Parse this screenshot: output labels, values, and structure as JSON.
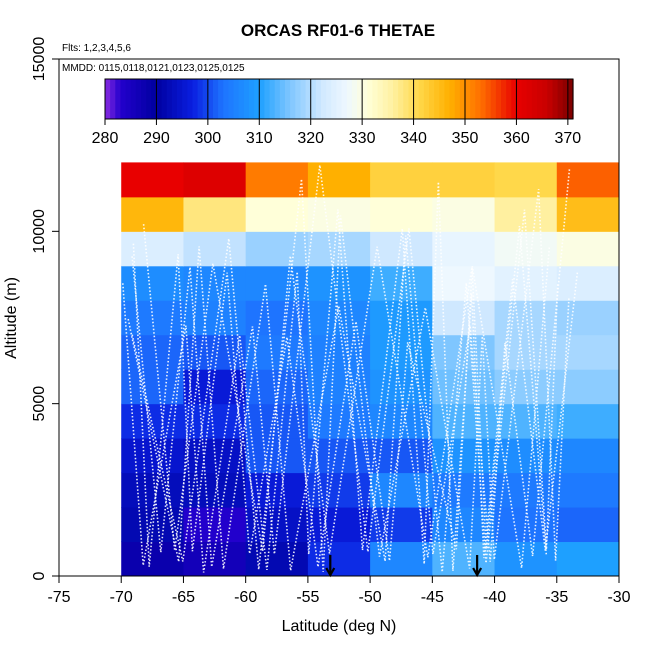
{
  "chart_data": {
    "type": "heatmap",
    "title": "ORCAS RF01-6 THETAE",
    "notes": {
      "flights": "Flts: 1,2,3,4,5,6",
      "dates": "MMDD: 0115,0118,0121,0123,0125,0125"
    },
    "xlabel": "Latitude (deg N)",
    "ylabel": "Altitude (m)",
    "xlim": [
      -75,
      -30
    ],
    "ylim": [
      0,
      15000
    ],
    "x_ticks": [
      -75,
      -70,
      -65,
      -60,
      -55,
      -50,
      -45,
      -40,
      -35,
      -30
    ],
    "x_tick_labels": [
      "-75",
      "-70",
      "-65",
      "-60",
      "-55",
      "-50",
      "-45",
      "-40",
      "-35",
      "-30"
    ],
    "y_ticks": [
      0,
      5000,
      10000,
      15000
    ],
    "y_tick_labels": [
      "0",
      "5000",
      "10000",
      "15000"
    ],
    "colorbar": {
      "min": 280,
      "max": 371,
      "ticks": [
        280,
        290,
        300,
        310,
        320,
        330,
        340,
        350,
        360,
        370
      ],
      "tick_labels": [
        "280",
        "290",
        "300",
        "310",
        "320",
        "330",
        "340",
        "350",
        "360",
        "370"
      ],
      "stops": [
        {
          "v": 280,
          "c": "#8a2be2"
        },
        {
          "v": 283,
          "c": "#2200cc"
        },
        {
          "v": 290,
          "c": "#0000a0"
        },
        {
          "v": 297,
          "c": "#0a1ee0"
        },
        {
          "v": 303,
          "c": "#1e74ff"
        },
        {
          "v": 310,
          "c": "#1ea0ff"
        },
        {
          "v": 316,
          "c": "#7fc6ff"
        },
        {
          "v": 322,
          "c": "#cfe8ff"
        },
        {
          "v": 327,
          "c": "#eef8ff"
        },
        {
          "v": 331,
          "c": "#ffffd9"
        },
        {
          "v": 336,
          "c": "#fff0a0"
        },
        {
          "v": 341,
          "c": "#ffd84a"
        },
        {
          "v": 347,
          "c": "#ffb000"
        },
        {
          "v": 353,
          "c": "#ff7000"
        },
        {
          "v": 360,
          "c": "#e80000"
        },
        {
          "v": 366,
          "c": "#c80000"
        },
        {
          "v": 371,
          "c": "#7a0000"
        }
      ]
    },
    "lat_bin_edges": [
      -70,
      -65,
      -60,
      -55,
      -50,
      -45,
      -40,
      -35,
      -30
    ],
    "alt_bin_edges": [
      0,
      1000,
      2000,
      3000,
      4000,
      5000,
      6000,
      7000,
      8000,
      9000,
      10000,
      11000,
      12000
    ],
    "grid_values": [
      [
        288,
        286,
        292,
        298,
        306,
        313,
        308,
        310
      ],
      [
        292,
        283,
        294,
        296,
        299,
        306,
        303,
        302
      ],
      [
        293,
        293,
        296,
        299,
        306,
        304,
        304,
        304
      ],
      [
        295,
        294,
        301,
        301,
        301,
        308,
        307,
        306
      ],
      [
        298,
        298,
        301,
        304,
        306,
        313,
        313,
        312
      ],
      [
        302,
        296,
        302,
        305,
        308,
        315,
        317,
        317
      ],
      [
        302,
        301,
        304,
        305,
        309,
        316,
        319,
        319
      ],
      [
        304,
        305,
        303,
        306,
        309,
        322,
        319,
        318
      ],
      [
        307,
        306,
        306,
        308,
        312,
        327,
        325,
        324
      ],
      [
        324,
        321,
        318,
        319,
        322,
        326,
        328,
        330
      ],
      [
        346,
        338,
        331,
        330,
        331,
        330,
        336,
        345
      ],
      [
        360,
        362,
        352,
        347,
        342,
        342,
        341,
        354
      ]
    ],
    "arrows_lat": [
      -53.2,
      -41.4
    ]
  }
}
